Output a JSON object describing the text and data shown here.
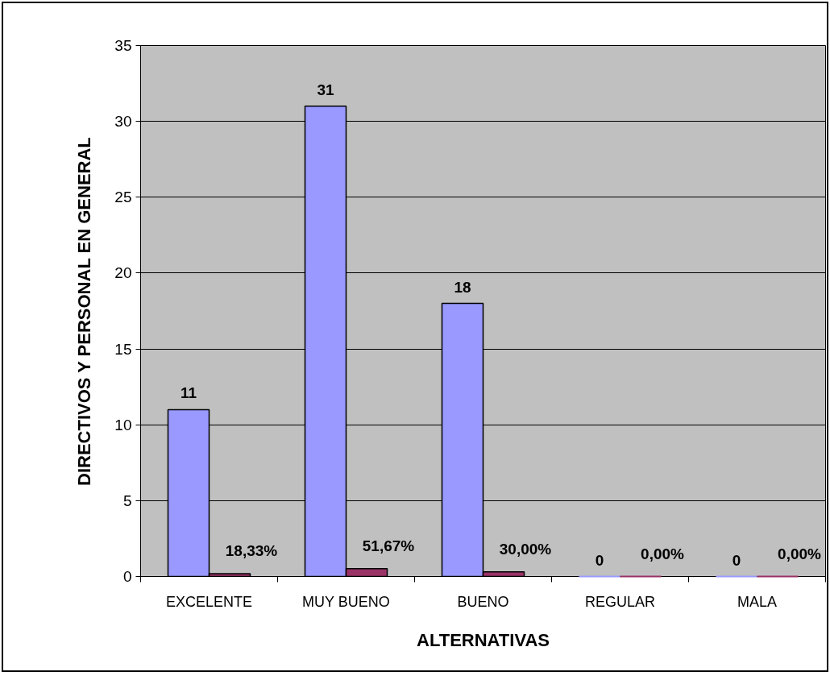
{
  "chart_data": {
    "type": "bar",
    "xlabel": "ALTERNATIVAS",
    "ylabel": "DIRECTIVOS Y PERSONAL EN GENERAL",
    "categories": [
      "EXCELENTE",
      "MUY BUENO",
      "BUENO",
      "REGULAR",
      "MALA"
    ],
    "series": [
      {
        "color": "#9999ff",
        "values": [
          11,
          31,
          18,
          0,
          0
        ],
        "value_labels": [
          "11",
          "31",
          "18",
          "0",
          "0"
        ]
      },
      {
        "color": "#993366",
        "values": [
          0.1833,
          0.5167,
          0.3,
          0,
          0
        ],
        "value_labels": [
          "18,33%",
          "51,67%",
          "30,00%",
          "0,00%",
          "0,00%"
        ]
      }
    ],
    "ylim": [
      0,
      35
    ],
    "yticks": [
      0,
      5,
      10,
      15,
      20,
      25,
      30,
      35
    ],
    "grid": "y"
  }
}
